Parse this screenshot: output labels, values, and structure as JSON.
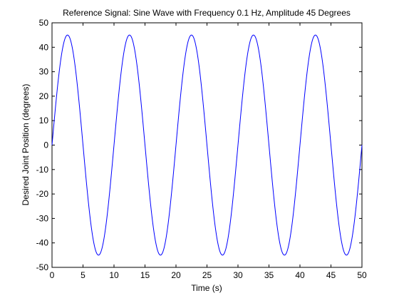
{
  "chart_data": {
    "type": "line",
    "title": "Reference Signal: Sine Wave with Frequency 0.1 Hz, Amplitude 45 Degrees",
    "xlabel": "Time (s)",
    "ylabel": "Desired Joint Position (degrees)",
    "xlim": [
      0,
      50
    ],
    "ylim": [
      -50,
      50
    ],
    "x_ticks": [
      0,
      5,
      10,
      15,
      20,
      25,
      30,
      35,
      40,
      45,
      50
    ],
    "y_ticks": [
      -50,
      -40,
      -30,
      -20,
      -10,
      0,
      10,
      20,
      30,
      40,
      50
    ],
    "grid": false,
    "legend": "none",
    "series": [
      {
        "color": "#0000ff",
        "function": "45*sin(2*pi*0.1*t)",
        "amplitude": 45,
        "frequency": 0.1,
        "x_range": [
          0,
          50
        ]
      }
    ]
  },
  "colors": {
    "background": "#ffffff",
    "axes": "#000000",
    "line": "#0000ff"
  }
}
